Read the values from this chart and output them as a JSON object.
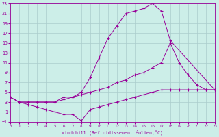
{
  "xlabel": "Windchill (Refroidissement éolien,°C)",
  "bg_color": "#cceee8",
  "grid_color": "#aacccc",
  "line_color": "#990099",
  "xlim": [
    0,
    23
  ],
  "ylim": [
    -1,
    23
  ],
  "xticks": [
    0,
    1,
    2,
    3,
    4,
    5,
    6,
    7,
    8,
    9,
    10,
    11,
    12,
    13,
    14,
    15,
    16,
    17,
    18,
    19,
    20,
    21,
    22,
    23
  ],
  "yticks": [
    -1,
    1,
    3,
    5,
    7,
    9,
    11,
    13,
    15,
    17,
    19,
    21,
    23
  ],
  "line_high_x": [
    0,
    1,
    2,
    3,
    4,
    5,
    6,
    7,
    8,
    9,
    10,
    11,
    12,
    13,
    14,
    15,
    16,
    17,
    18,
    23
  ],
  "line_high_y": [
    4,
    3,
    3,
    3,
    3,
    3,
    4,
    4,
    5,
    8,
    12,
    16,
    18.5,
    21,
    21.5,
    22,
    23,
    21.5,
    15.5,
    5.5
  ],
  "line_mid_x": [
    0,
    1,
    2,
    3,
    4,
    5,
    6,
    7,
    8,
    9,
    10,
    11,
    12,
    13,
    14,
    15,
    16,
    17,
    18,
    19,
    20,
    21,
    22,
    23
  ],
  "line_mid_y": [
    4,
    3,
    3,
    3,
    3,
    3,
    3.5,
    4,
    4.5,
    5,
    5.5,
    6,
    7,
    7.5,
    8.5,
    9,
    10,
    11,
    15,
    11,
    8.5,
    6.5,
    5.5,
    5.5
  ],
  "line_low_x": [
    0,
    1,
    2,
    3,
    4,
    5,
    6,
    7,
    8,
    9,
    10,
    11,
    12,
    13,
    14,
    15,
    16,
    17,
    18,
    19,
    20,
    21,
    22,
    23
  ],
  "line_low_y": [
    4,
    3,
    2.5,
    2,
    1.5,
    1,
    0.5,
    0.5,
    -0.8,
    1.5,
    2,
    2.5,
    3,
    3.5,
    4,
    4.5,
    5,
    5.5,
    5.5,
    5.5,
    5.5,
    5.5,
    5.5,
    5.5
  ]
}
